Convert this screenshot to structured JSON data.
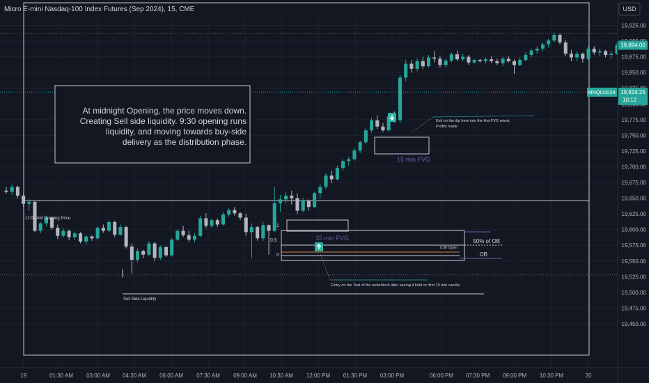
{
  "header": {
    "symbol_title": "Micro E-mini Nasdaq-100 Index Futures (Sep 2024), 15, CME",
    "currency_button": "USD"
  },
  "colors": {
    "background": "#131722",
    "bull": "#26a69a",
    "bear": "#b2b5be",
    "grid_dotted": "#434651",
    "accent_teal": "#2bb5a6",
    "fvg_label": "#6b5fa8",
    "orange_line": "#c8823e"
  },
  "price_badges": [
    {
      "label": "19,894.00",
      "price": 19894,
      "style": "bull"
    },
    {
      "label": "MNQU2024",
      "price": 19819.25,
      "style": "bull"
    },
    {
      "label": "19,819.25",
      "price": 19819.25,
      "style": "bull"
    },
    {
      "label": "10:12",
      "price": 19806,
      "style": "bull"
    }
  ],
  "annotations": {
    "main_note": [
      "At midnight Opening, the price moves down.",
      "Creating Sell side liquidity. 9:30 opening runs",
      "liquidity, and moving towards buy-side",
      "delivery as the distribution phase."
    ],
    "opening_price_label": "12:00 AM Opening Price",
    "sell_side_label": "Sell Side Liquidity",
    "fvg_upper_label": "15 min FVG",
    "fvg_lower_label": "15 min FVG",
    "exit_note": [
      "Exit on the dip here into the first FVG retest.",
      "Profits made"
    ],
    "entry_note": "Entry on the Test of the orderblock after seeing it hold on first 15 min candle.",
    "ob_50_label": "50% of OB",
    "ob_label": "OB",
    "open_930_label": "9:30 Open",
    "fib_1": "1",
    "fib_05": "0.5",
    "fib_0": "0"
  },
  "chart_data": {
    "type": "candlestick",
    "y_axis": {
      "min": 19440,
      "max": 19945,
      "ticks": [
        19925,
        19900,
        19875,
        19850,
        19825,
        19800,
        19775,
        19750,
        19725,
        19700,
        19675,
        19650,
        19625,
        19600,
        19575,
        19550,
        19525,
        19500,
        19475,
        19450
      ],
      "tick_labels": [
        "19,925.00",
        "19,900.00",
        "19,875.00",
        "19,850.00",
        "19,825.00",
        "19,800.00",
        "19,775.00",
        "19,750.00",
        "19,725.00",
        "19,700.00",
        "19,675.00",
        "19,650.00",
        "19,625.00",
        "19,600.00",
        "19,575.00",
        "19,550.00",
        "19,525.00",
        "19,500.00",
        "19,475.00",
        "19,450.00"
      ]
    },
    "x_axis": {
      "tick_labels": [
        "19",
        "01:30 AM",
        "03:00 AM",
        "04:30 AM",
        "06:00 AM",
        "07:30 AM",
        "09:00 AM",
        "10:30 AM",
        "12:00 PM",
        "01:30 PM",
        "03:00 PM",
        "06:00 PM",
        "07:30 PM",
        "09:00 PM",
        "10:30 PM",
        "20"
      ]
    },
    "levels": {
      "opening_price": 19646,
      "sell_side_liquidity": 19528,
      "ob_high": 19612,
      "ob_mid": 19604,
      "ob_low": 19590,
      "open_930": 19606,
      "fib_1_top": 19636,
      "fib_05_mid": 19615,
      "fib_0_bottom": 19600,
      "dotted_high": 19912,
      "dotted_current": 19819
    },
    "candles": [
      [
        19662,
        19668,
        19657,
        19660
      ],
      [
        19660,
        19672,
        19655,
        19668
      ],
      [
        19668,
        19670,
        19650,
        19654
      ],
      [
        19654,
        19658,
        19636,
        19641
      ],
      [
        19641,
        19648,
        19630,
        19644
      ],
      [
        19644,
        19646,
        19596,
        19598
      ],
      [
        19598,
        19612,
        19594,
        19610
      ],
      [
        19610,
        19622,
        19605,
        19619
      ],
      [
        19619,
        19621,
        19600,
        19603
      ],
      [
        19603,
        19608,
        19585,
        19590
      ],
      [
        19590,
        19602,
        19587,
        19598
      ],
      [
        19598,
        19600,
        19583,
        19588
      ],
      [
        19588,
        19597,
        19584,
        19594
      ],
      [
        19594,
        19596,
        19578,
        19581
      ],
      [
        19581,
        19592,
        19576,
        19589
      ],
      [
        19589,
        19591,
        19582,
        19586
      ],
      [
        19586,
        19605,
        19584,
        19603
      ],
      [
        19603,
        19608,
        19595,
        19598
      ],
      [
        19598,
        19615,
        19596,
        19612
      ],
      [
        19612,
        19614,
        19588,
        19592
      ],
      [
        19592,
        19608,
        19590,
        19604
      ],
      [
        19604,
        19606,
        19570,
        19573
      ],
      [
        19573,
        19578,
        19530,
        19552
      ],
      [
        19552,
        19570,
        19548,
        19566
      ],
      [
        19566,
        19568,
        19554,
        19560
      ],
      [
        19560,
        19582,
        19558,
        19578
      ],
      [
        19578,
        19580,
        19550,
        19555
      ],
      [
        19555,
        19575,
        19552,
        19572
      ],
      [
        19572,
        19574,
        19556,
        19559
      ],
      [
        19559,
        19586,
        19557,
        19584
      ],
      [
        19584,
        19600,
        19582,
        19598
      ],
      [
        19598,
        19606,
        19588,
        19591
      ],
      [
        19591,
        19598,
        19580,
        19584
      ],
      [
        19584,
        19594,
        19580,
        19590
      ],
      [
        19590,
        19622,
        19588,
        19618
      ],
      [
        19618,
        19626,
        19602,
        19606
      ],
      [
        19606,
        19618,
        19603,
        19615
      ],
      [
        19615,
        19618,
        19604,
        19608
      ],
      [
        19608,
        19628,
        19606,
        19624
      ],
      [
        19624,
        19634,
        19620,
        19631
      ],
      [
        19631,
        19636,
        19622,
        19626
      ],
      [
        19626,
        19628,
        19615,
        19619
      ],
      [
        19619,
        19625,
        19590,
        19596
      ],
      [
        19596,
        19610,
        19555,
        19604
      ],
      [
        19604,
        19606,
        19582,
        19586
      ],
      [
        19586,
        19612,
        19582,
        19607
      ],
      [
        19607,
        19608,
        19560,
        19598
      ],
      [
        19598,
        19668,
        19596,
        19642
      ],
      [
        19642,
        19655,
        19628,
        19648
      ],
      [
        19648,
        19660,
        19642,
        19654
      ],
      [
        19654,
        19662,
        19640,
        19650
      ],
      [
        19650,
        19658,
        19625,
        19630
      ],
      [
        19630,
        19650,
        19628,
        19646
      ],
      [
        19646,
        19648,
        19630,
        19636
      ],
      [
        19636,
        19660,
        19634,
        19658
      ],
      [
        19658,
        19672,
        19650,
        19668
      ],
      [
        19668,
        19690,
        19664,
        19686
      ],
      [
        19686,
        19694,
        19674,
        19680
      ],
      [
        19680,
        19702,
        19678,
        19698
      ],
      [
        19698,
        19712,
        19694,
        19709
      ],
      [
        19709,
        19716,
        19702,
        19712
      ],
      [
        19712,
        19730,
        19710,
        19726
      ],
      [
        19726,
        19742,
        19722,
        19739
      ],
      [
        19739,
        19762,
        19736,
        19758
      ],
      [
        19758,
        19778,
        19754,
        19774
      ],
      [
        19774,
        19782,
        19760,
        19764
      ],
      [
        19764,
        19770,
        19755,
        19758
      ],
      [
        19758,
        19785,
        19756,
        19780
      ],
      [
        19780,
        19788,
        19770,
        19774
      ],
      [
        19774,
        19846,
        19770,
        19842
      ],
      [
        19842,
        19870,
        19836,
        19864
      ],
      [
        19864,
        19870,
        19850,
        19856
      ],
      [
        19856,
        19872,
        19852,
        19868
      ],
      [
        19868,
        19875,
        19856,
        19860
      ],
      [
        19860,
        19878,
        19858,
        19874
      ],
      [
        19874,
        19884,
        19866,
        19872
      ],
      [
        19872,
        19876,
        19858,
        19862
      ],
      [
        19862,
        19872,
        19858,
        19869
      ],
      [
        19869,
        19882,
        19866,
        19879
      ],
      [
        19879,
        19885,
        19868,
        19871
      ],
      [
        19871,
        19880,
        19868,
        19875
      ],
      [
        19875,
        19878,
        19862,
        19866
      ],
      [
        19866,
        19872,
        19864,
        19870
      ],
      [
        19870,
        19872,
        19866,
        19868
      ],
      [
        19868,
        19874,
        19864,
        19871
      ],
      [
        19871,
        19876,
        19865,
        19868
      ],
      [
        19868,
        19872,
        19862,
        19865
      ],
      [
        19865,
        19875,
        19860,
        19872
      ],
      [
        19872,
        19876,
        19866,
        19868
      ],
      [
        19868,
        19871,
        19848,
        19862
      ],
      [
        19862,
        19874,
        19860,
        19870
      ],
      [
        19870,
        19882,
        19868,
        19878
      ],
      [
        19878,
        19888,
        19874,
        19885
      ],
      [
        19885,
        19892,
        19880,
        19888
      ],
      [
        19888,
        19898,
        19884,
        19895
      ],
      [
        19895,
        19904,
        19890,
        19901
      ],
      [
        19901,
        19914,
        19898,
        19910
      ],
      [
        19910,
        19912,
        19895,
        19898
      ],
      [
        19898,
        19902,
        19876,
        19880
      ],
      [
        19880,
        19886,
        19868,
        19874
      ],
      [
        19874,
        19884,
        19868,
        19880
      ],
      [
        19880,
        19882,
        19866,
        19872
      ],
      [
        19872,
        19892,
        19870,
        19888
      ],
      [
        19888,
        19892,
        19878,
        19882
      ],
      [
        19882,
        19888,
        19876,
        19884
      ],
      [
        19884,
        19886,
        19874,
        19878
      ],
      [
        19878,
        19884,
        19872,
        19880
      ],
      [
        19880,
        19898,
        19878,
        19894
      ]
    ]
  }
}
